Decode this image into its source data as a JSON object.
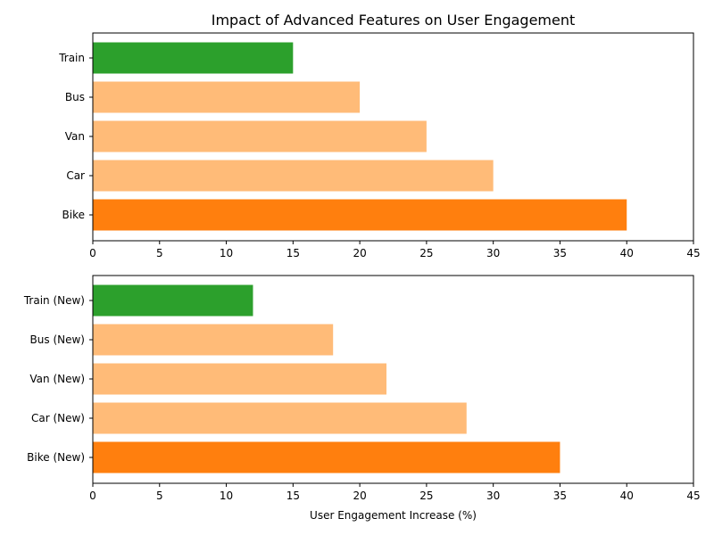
{
  "chart_data": [
    {
      "type": "bar",
      "orientation": "horizontal",
      "title": "Impact of Advanced Features on User Engagement",
      "xlabel": "",
      "ylabel": "",
      "categories": [
        "Bike",
        "Car",
        "Van",
        "Bus",
        "Train"
      ],
      "values": [
        40,
        30,
        25,
        20,
        15
      ],
      "colors": [
        "#ff7f0e",
        "#ffbb78",
        "#ffbb78",
        "#ffbb78",
        "#2ca02c"
      ],
      "xlim": [
        0,
        45
      ],
      "xticks": [
        0,
        5,
        10,
        15,
        20,
        25,
        30,
        35,
        40,
        45
      ],
      "grid": false,
      "legend": "none"
    },
    {
      "type": "bar",
      "orientation": "horizontal",
      "title": "",
      "xlabel": "User Engagement Increase (%)",
      "ylabel": "",
      "categories": [
        "Bike (New)",
        "Car (New)",
        "Van (New)",
        "Bus (New)",
        "Train (New)"
      ],
      "values": [
        35,
        28,
        22,
        18,
        12
      ],
      "colors": [
        "#ff7f0e",
        "#ffbb78",
        "#ffbb78",
        "#ffbb78",
        "#2ca02c"
      ],
      "xlim": [
        0,
        45
      ],
      "xticks": [
        0,
        5,
        10,
        15,
        20,
        25,
        30,
        35,
        40,
        45
      ],
      "grid": false,
      "legend": "none"
    }
  ]
}
